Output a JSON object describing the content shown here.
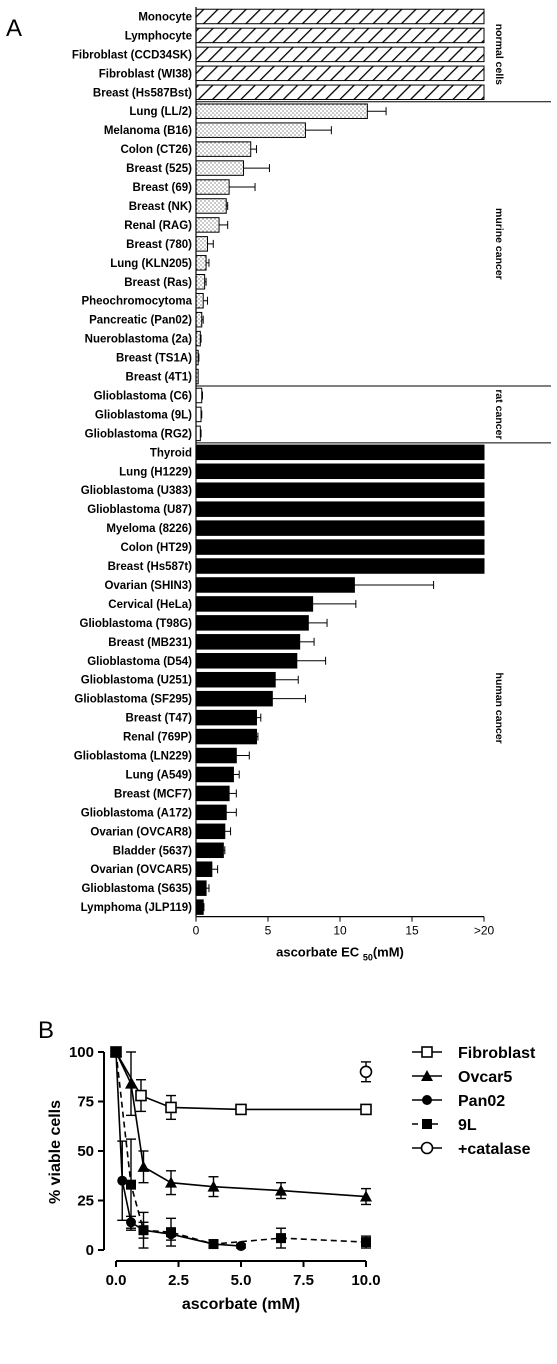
{
  "panels": {
    "a": "A",
    "b": "B"
  },
  "chart_data": [
    {
      "type": "bar",
      "orientation": "horizontal",
      "xlabel": "ascorbate EC",
      "xlabel_sub": "50",
      "xlabel_unit": "(mM)",
      "xlim": [
        0,
        20
      ],
      "xticks": [
        "0",
        "5",
        "10",
        "15",
        ">20"
      ],
      "groups": [
        {
          "name": "normal cells",
          "rows": [
            0,
            4
          ]
        },
        {
          "name": "murine cancer",
          "rows": [
            5,
            19
          ]
        },
        {
          "name": "rat cancer",
          "rows": [
            20,
            22
          ]
        },
        {
          "name": "human cancer",
          "rows": [
            23,
            50
          ]
        }
      ],
      "bars": [
        {
          "label": "Monocyte",
          "value": 20,
          "error": 0,
          "style": "hatch"
        },
        {
          "label": "Lymphocyte",
          "value": 20,
          "error": 0,
          "style": "hatch"
        },
        {
          "label": "Fibroblast (CCD34SK)",
          "value": 20,
          "error": 0,
          "style": "hatch"
        },
        {
          "label": "Fibroblast (WI38)",
          "value": 20,
          "error": 0,
          "style": "hatch"
        },
        {
          "label": "Breast (Hs587Bst)",
          "value": 20,
          "error": 0,
          "style": "hatch"
        },
        {
          "label": "Lung (LL/2)",
          "value": 11.9,
          "error": 1.3,
          "style": "dots"
        },
        {
          "label": "Melanoma (B16)",
          "value": 7.6,
          "error": 1.8,
          "style": "dots"
        },
        {
          "label": "Colon (CT26)",
          "value": 3.8,
          "error": 0.4,
          "style": "dots"
        },
        {
          "label": "Breast (525)",
          "value": 3.3,
          "error": 1.8,
          "style": "dots"
        },
        {
          "label": "Breast (69)",
          "value": 2.3,
          "error": 1.8,
          "style": "dots"
        },
        {
          "label": "Breast (NK)",
          "value": 2.1,
          "error": 0.1,
          "style": "dots"
        },
        {
          "label": "Renal (RAG)",
          "value": 1.6,
          "error": 0.6,
          "style": "dots"
        },
        {
          "label": "Breast (780)",
          "value": 0.8,
          "error": 0.4,
          "style": "dots"
        },
        {
          "label": "Lung (KLN205)",
          "value": 0.7,
          "error": 0.2,
          "style": "dots"
        },
        {
          "label": "Breast (Ras)",
          "value": 0.6,
          "error": 0.1,
          "style": "dots"
        },
        {
          "label": "Pheochromocytoma",
          "value": 0.5,
          "error": 0.3,
          "style": "dots"
        },
        {
          "label": "Pancreatic (Pan02)",
          "value": 0.4,
          "error": 0.1,
          "style": "dots"
        },
        {
          "label": "Nueroblastoma (2a)",
          "value": 0.3,
          "error": 0.05,
          "style": "dots"
        },
        {
          "label": "Breast (TS1A)",
          "value": 0.15,
          "error": 0.05,
          "style": "dots"
        },
        {
          "label": "Breast (4T1)",
          "value": 0.15,
          "error": 0,
          "style": "dots"
        },
        {
          "label": "Glioblastoma (C6)",
          "value": 0.4,
          "error": 0.05,
          "style": "white"
        },
        {
          "label": "Glioblastoma (9L)",
          "value": 0.35,
          "error": 0.05,
          "style": "white"
        },
        {
          "label": "Glioblastoma (RG2)",
          "value": 0.3,
          "error": 0.05,
          "style": "white"
        },
        {
          "label": "Thyroid",
          "value": 20,
          "error": 0,
          "style": "black"
        },
        {
          "label": "Lung (H1229)",
          "value": 20,
          "error": 0,
          "style": "black"
        },
        {
          "label": "Glioblastoma (U383)",
          "value": 20,
          "error": 0,
          "style": "black"
        },
        {
          "label": "Glioblastoma (U87)",
          "value": 20,
          "error": 0,
          "style": "black"
        },
        {
          "label": "Myeloma (8226)",
          "value": 20,
          "error": 0,
          "style": "black"
        },
        {
          "label": "Colon (HT29)",
          "value": 20,
          "error": 0,
          "style": "black"
        },
        {
          "label": "Breast (Hs587t)",
          "value": 20,
          "error": 0,
          "style": "black"
        },
        {
          "label": "Ovarian (SHIN3)",
          "value": 11.0,
          "error": 5.5,
          "style": "black"
        },
        {
          "label": "Cervical (HeLa)",
          "value": 8.1,
          "error": 3.0,
          "style": "black"
        },
        {
          "label": "Glioblastoma (T98G)",
          "value": 7.8,
          "error": 1.3,
          "style": "black"
        },
        {
          "label": "Breast (MB231)",
          "value": 7.2,
          "error": 1.0,
          "style": "black"
        },
        {
          "label": "Glioblastoma (D54)",
          "value": 7.0,
          "error": 2.0,
          "style": "black"
        },
        {
          "label": "Glioblastoma (U251)",
          "value": 5.5,
          "error": 1.6,
          "style": "black"
        },
        {
          "label": "Glioblastoma (SF295)",
          "value": 5.3,
          "error": 2.3,
          "style": "black"
        },
        {
          "label": "Breast (T47)",
          "value": 4.2,
          "error": 0.3,
          "style": "black"
        },
        {
          "label": "Renal (769P)",
          "value": 4.2,
          "error": 0.1,
          "style": "black"
        },
        {
          "label": "Glioblastoma (LN229)",
          "value": 2.8,
          "error": 0.9,
          "style": "black"
        },
        {
          "label": "Lung (A549)",
          "value": 2.6,
          "error": 0.4,
          "style": "black"
        },
        {
          "label": "Breast (MCF7)",
          "value": 2.3,
          "error": 0.5,
          "style": "black"
        },
        {
          "label": "Glioblastoma (A172)",
          "value": 2.1,
          "error": 0.7,
          "style": "black"
        },
        {
          "label": "Ovarian (OVCAR8)",
          "value": 2.0,
          "error": 0.4,
          "style": "black"
        },
        {
          "label": "Bladder (5637)",
          "value": 1.9,
          "error": 0.1,
          "style": "black"
        },
        {
          "label": "Ovarian (OVCAR5)",
          "value": 1.1,
          "error": 0.4,
          "style": "black"
        },
        {
          "label": "Glioblastoma (S635)",
          "value": 0.7,
          "error": 0.2,
          "style": "black"
        },
        {
          "label": "Lymphoma (JLP119)",
          "value": 0.5,
          "error": 0.05,
          "style": "black"
        }
      ]
    },
    {
      "type": "line",
      "xlabel": "ascorbate (mM)",
      "ylabel": "% viable cells",
      "xlim": [
        0,
        10
      ],
      "ylim": [
        0,
        100
      ],
      "xticks": [
        0,
        2.5,
        5,
        7.5,
        10
      ],
      "xtick_labels": [
        "0.0",
        "2.5",
        "5.0",
        "7.5",
        "10.0"
      ],
      "yticks": [
        0,
        25,
        50,
        75,
        100
      ],
      "yticks_labels": [
        "0",
        "25",
        "50",
        "75",
        "100"
      ],
      "legend_position": "right",
      "series": [
        {
          "name": "Fibroblast",
          "marker": "square-open",
          "dash": false,
          "x": [
            0,
            1,
            2.2,
            5,
            10
          ],
          "y": [
            100,
            78,
            72,
            71,
            71
          ],
          "err": [
            0,
            8,
            6,
            1,
            2
          ]
        },
        {
          "name": "Ovcar5",
          "marker": "triangle",
          "dash": false,
          "x": [
            0,
            0.6,
            1.1,
            2.2,
            3.9,
            6.6,
            10
          ],
          "y": [
            100,
            84,
            42,
            34,
            32,
            30,
            27
          ],
          "err": [
            0,
            16,
            8,
            6,
            5,
            4,
            4
          ]
        },
        {
          "name": "Pan02",
          "marker": "circle",
          "dash": false,
          "x": [
            0,
            0.25,
            0.6,
            1.1,
            2.2,
            3.9,
            5
          ],
          "y": [
            100,
            35,
            14,
            10,
            8,
            3,
            2
          ],
          "err": [
            0,
            20,
            3,
            4,
            3,
            2,
            1
          ]
        },
        {
          "name": "9L",
          "marker": "square",
          "dash": true,
          "x": [
            0,
            0.6,
            1.1,
            2.2,
            3.9,
            6.6,
            10
          ],
          "y": [
            100,
            33,
            10,
            9,
            3,
            6,
            4
          ],
          "err": [
            0,
            23,
            9,
            7,
            2,
            5,
            3
          ]
        },
        {
          "name": "+catalase",
          "marker": "circle-open",
          "dash": false,
          "x": [
            10
          ],
          "y": [
            90
          ],
          "err": [
            5
          ]
        }
      ]
    }
  ]
}
